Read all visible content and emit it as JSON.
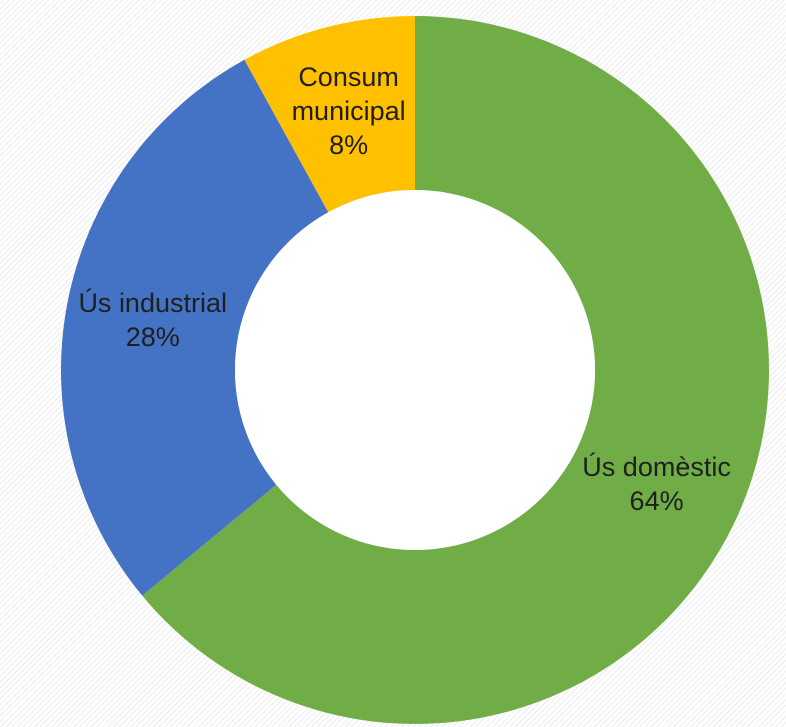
{
  "chart_data": {
    "type": "donut",
    "categories": [
      "Ús domèstic",
      "Ús industrial",
      "Consum municipal"
    ],
    "values": [
      64,
      28,
      8
    ],
    "value_labels": [
      "64%",
      "28%",
      "8%"
    ],
    "colors": [
      "#70ad47",
      "#4472c4",
      "#ffc000"
    ]
  }
}
